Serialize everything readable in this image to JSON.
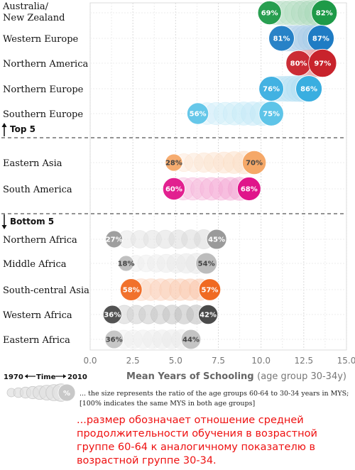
{
  "chart_data": {
    "type": "scatter",
    "xlabel_bold": "Mean Years of Schooling",
    "xlabel_rest": "(age group 30-34y)",
    "xlim": [
      0,
      15
    ],
    "x_ticks": [
      "0.0",
      "2.5",
      "5.0",
      "7.5",
      "10.0",
      "12.5",
      "15.0"
    ],
    "grid": true,
    "colors": {
      "australia": "#1e9a48",
      "western_europe": "#1f7cc4",
      "northern_america": "#c8232c",
      "northern_europe": "#3aaee0",
      "southern_europe": "#5ec4e8",
      "eastern_asia": "#f5a868",
      "south_america": "#e0158a",
      "northern_africa": "#9a9a9a",
      "middle_africa": "#bdbdbd",
      "south_central_asia": "#f06a22",
      "western_africa": "#4a4a4a",
      "eastern_africa": "#c4c4c4"
    },
    "groups": [
      {
        "label": "Top 5",
        "arrow": "up"
      },
      {
        "label": "Bottom 5",
        "arrow": "down"
      }
    ],
    "regions": [
      {
        "name": "Australia/",
        "name2": "New Zealand",
        "color_key": "australia",
        "mys_1970": 10.5,
        "mys_2010": 13.7,
        "ratio_1970": "69%",
        "ratio_2010": "82%",
        "size_1970": 0.69,
        "size_2010": 0.82
      },
      {
        "name": "Western Europe",
        "color_key": "western_europe",
        "mys_1970": 11.2,
        "mys_2010": 13.5,
        "ratio_1970": "81%",
        "ratio_2010": "87%",
        "size_1970": 0.81,
        "size_2010": 0.87
      },
      {
        "name": "Northern America",
        "color_key": "northern_america",
        "mys_1970": 12.2,
        "mys_2010": 13.6,
        "ratio_1970": "80%",
        "ratio_2010": "97%",
        "size_1970": 0.8,
        "size_2010": 0.97
      },
      {
        "name": "Northern Europe",
        "color_key": "northern_europe",
        "mys_1970": 10.6,
        "mys_2010": 12.8,
        "ratio_1970": "76%",
        "ratio_2010": "86%",
        "size_1970": 0.76,
        "size_2010": 0.86
      },
      {
        "name": "Southern Europe",
        "color_key": "southern_europe",
        "mys_1970": 6.3,
        "mys_2010": 10.6,
        "ratio_1970": "56%",
        "ratio_2010": "75%",
        "size_1970": 0.56,
        "size_2010": 0.75
      },
      {
        "name": "Eastern Asia",
        "color_key": "eastern_asia",
        "mys_1970": 4.9,
        "mys_2010": 9.6,
        "ratio_1970": "28%",
        "ratio_2010": "70%",
        "size_1970": 0.28,
        "size_2010": 0.7
      },
      {
        "name": "South America",
        "color_key": "south_america",
        "mys_1970": 4.9,
        "mys_2010": 9.3,
        "ratio_1970": "60%",
        "ratio_2010": "68%",
        "size_1970": 0.6,
        "size_2010": 0.68
      },
      {
        "name": "Northern Africa",
        "color_key": "northern_africa",
        "mys_1970": 1.4,
        "mys_2010": 7.4,
        "ratio_1970": "27%",
        "ratio_2010": "45%",
        "size_1970": 0.27,
        "size_2010": 0.45
      },
      {
        "name": "Middle Africa",
        "color_key": "middle_africa",
        "mys_1970": 2.1,
        "mys_2010": 6.8,
        "ratio_1970": "18%",
        "ratio_2010": "54%",
        "size_1970": 0.18,
        "size_2010": 0.54
      },
      {
        "name": "South-central Asia",
        "color_key": "south_central_asia",
        "mys_1970": 2.4,
        "mys_2010": 7.0,
        "ratio_1970": "58%",
        "ratio_2010": "57%",
        "size_1970": 0.58,
        "size_2010": 0.57
      },
      {
        "name": "Western Africa",
        "color_key": "western_africa",
        "mys_1970": 1.3,
        "mys_2010": 6.9,
        "ratio_1970": "36%",
        "ratio_2010": "42%",
        "size_1970": 0.36,
        "size_2010": 0.42
      },
      {
        "name": "Eastern Africa",
        "color_key": "eastern_africa",
        "mys_1970": 1.4,
        "mys_2010": 5.9,
        "ratio_1970": "36%",
        "ratio_2010": "44%",
        "size_1970": 0.36,
        "size_2010": 0.44
      }
    ]
  },
  "legend": {
    "year_start": "1970",
    "time_label": "Time",
    "year_end": "2010",
    "sample_label": "%",
    "line1": "... the size represents the ratio of the age groups 60-64 to 30-34 years in MYS;",
    "line2": "[100% indicates the same MYS in both age groups]"
  },
  "russian_note": "...размер обозначает отношение средней продолжительности обучения в возрастной группе 60-64 к аналогичному показателю в возрастной группе 30-34."
}
